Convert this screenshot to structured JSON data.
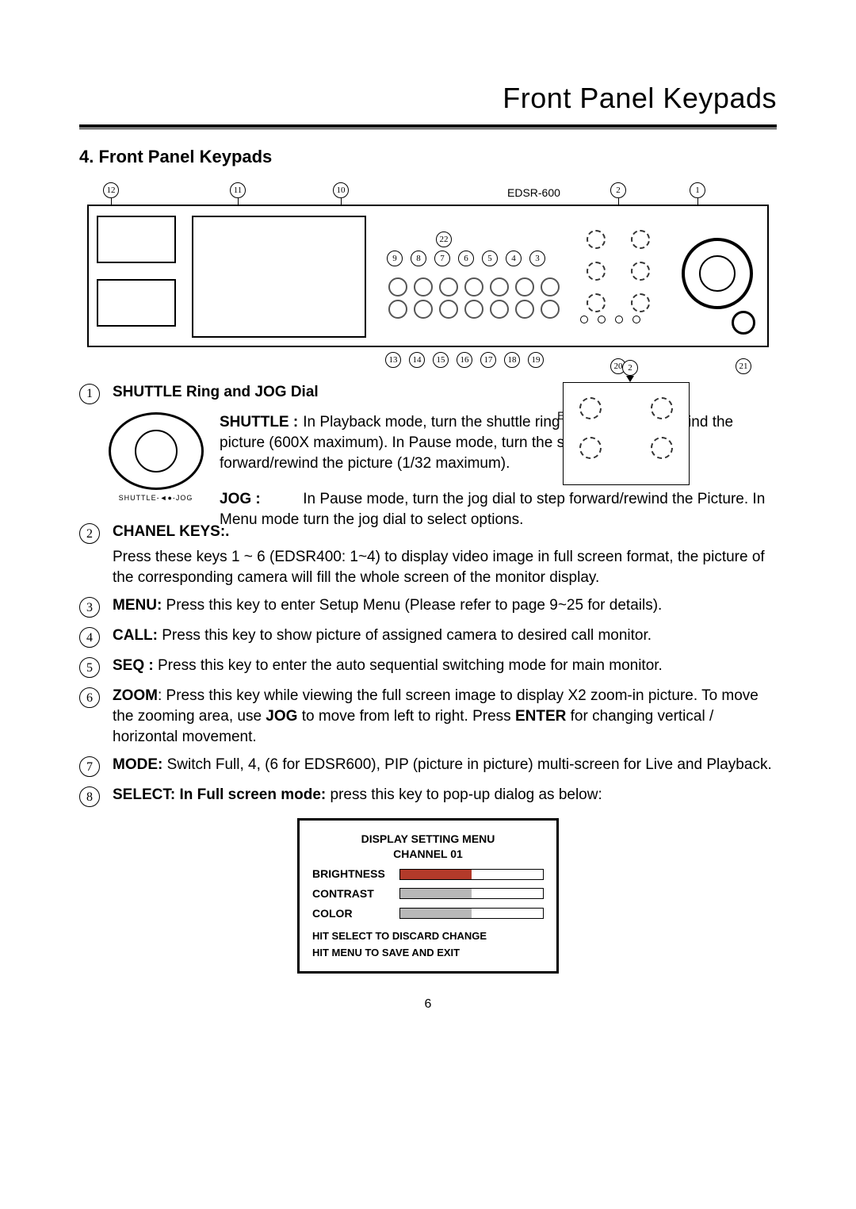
{
  "page": {
    "top_title": "Front Panel Keypads",
    "section_title": "4. Front Panel Keypads",
    "page_number": "6"
  },
  "device_labels": {
    "edsr600": "EDSR-600",
    "edsr400": "EDSR-400"
  },
  "callouts_top": [
    "12",
    "11",
    "10",
    "2",
    "1"
  ],
  "callouts_mid": [
    "22",
    "9",
    "8",
    "7",
    "6",
    "5",
    "4",
    "3"
  ],
  "callouts_bot": [
    "13",
    "14",
    "15",
    "16",
    "17",
    "18",
    "19",
    "20",
    "21"
  ],
  "callouts_mini": [
    "2"
  ],
  "item1": {
    "num": "1",
    "heading": "SHUTTLE Ring and JOG  Dial",
    "shuttle_label": "SHUTTLE  :",
    "shuttle_text": "In Playback mode, turn the shuttle ring to fast forward/rewind the picture (600X maximum). In Pause mode, turn the shuttle dial to slow forward/rewind the picture (1/32 maximum).",
    "jog_label": "JOG :",
    "jog_text": "In Pause mode, turn the jog dial to step forward/rewind the Picture. In Menu mode turn the jog dial to select options.",
    "img_caption": "SHUTTLE-◄●-JOG"
  },
  "item2": {
    "num": "2",
    "heading": "CHANEL KEYS:.",
    "text": "Press these keys 1 ~ 6 (EDSR400: 1~4) to display video image in  full screen format, the picture of the corresponding camera will fill the whole screen of the monitor display."
  },
  "item3": {
    "num": "3",
    "label": "MENU:",
    "text": " Press this key to enter Setup Menu (Please refer to page 9~25 for details)."
  },
  "item4": {
    "num": "4",
    "label": "CALL:",
    "text": " Press this key to show picture of assigned camera to desired call monitor."
  },
  "item5": {
    "num": "5",
    "label": "SEQ :",
    "text": " Press this key to enter the auto sequential switching mode for main monitor."
  },
  "item6": {
    "num": "6",
    "label": "ZOOM",
    "text1": ": Press this key while viewing the full screen image to display X2 zoom-in picture. To move the zooming area, use ",
    "jog": "JOG",
    "text2": " to move from left to right. Press ",
    "enter": "ENTER",
    "text3": " for changing vertical / horizontal movement."
  },
  "item7": {
    "num": "7",
    "label": "MODE:",
    "text": " Switch Full, 4, (6 for EDSR600), PIP (picture in picture) multi-screen for Live and Playback."
  },
  "item8": {
    "num": "8",
    "label": "SELECT: In Full screen mode:",
    "text": " press this key to pop-up dialog as below:"
  },
  "dialog": {
    "title": "DISPLAY SETTING MENU",
    "subtitle": "CHANNEL 01",
    "rows": [
      {
        "label": "BRIGHTNESS",
        "fill_pct": 50,
        "fill_color": "#b33a2a"
      },
      {
        "label": "CONTRAST",
        "fill_pct": 50,
        "fill_color": "#b8b8b8"
      },
      {
        "label": "COLOR",
        "fill_pct": 50,
        "fill_color": "#b8b8b8"
      }
    ],
    "note1": "HIT SELECT TO DISCARD CHANGE",
    "note2": "HIT MENU TO SAVE AND EXIT"
  }
}
